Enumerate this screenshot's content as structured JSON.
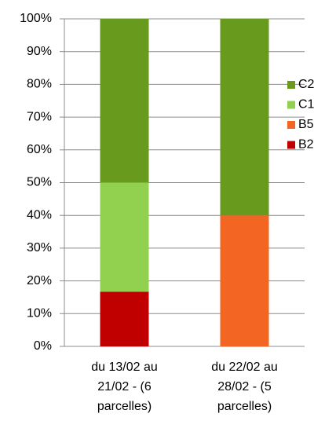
{
  "chart_data": {
    "type": "stacked-bar",
    "categories": [
      [
        "du 13/02 au",
        "21/02 - (6",
        "parcelles)"
      ],
      [
        "du 22/02 au",
        "28/02 - (5",
        "parcelles)"
      ]
    ],
    "series": [
      {
        "name": "B2",
        "color": "#c00000",
        "values": [
          16.7,
          0
        ]
      },
      {
        "name": "B5",
        "color": "#f26522",
        "values": [
          0,
          40
        ]
      },
      {
        "name": "C1",
        "color": "#92d050",
        "values": [
          33.3,
          0
        ]
      },
      {
        "name": "C2",
        "color": "#689a1e",
        "values": [
          50,
          60
        ]
      }
    ],
    "ylim": [
      0,
      100
    ],
    "yticks": [
      {
        "value": 0,
        "label": "0%"
      },
      {
        "value": 10,
        "label": "10%"
      },
      {
        "value": 20,
        "label": "20%"
      },
      {
        "value": 30,
        "label": "30%"
      },
      {
        "value": 40,
        "label": "40%"
      },
      {
        "value": 50,
        "label": "50%"
      },
      {
        "value": 60,
        "label": "60%"
      },
      {
        "value": 70,
        "label": "70%"
      },
      {
        "value": 80,
        "label": "80%"
      },
      {
        "value": 90,
        "label": "90%"
      },
      {
        "value": 100,
        "label": "100%"
      }
    ],
    "grid": true,
    "legend": "right"
  }
}
